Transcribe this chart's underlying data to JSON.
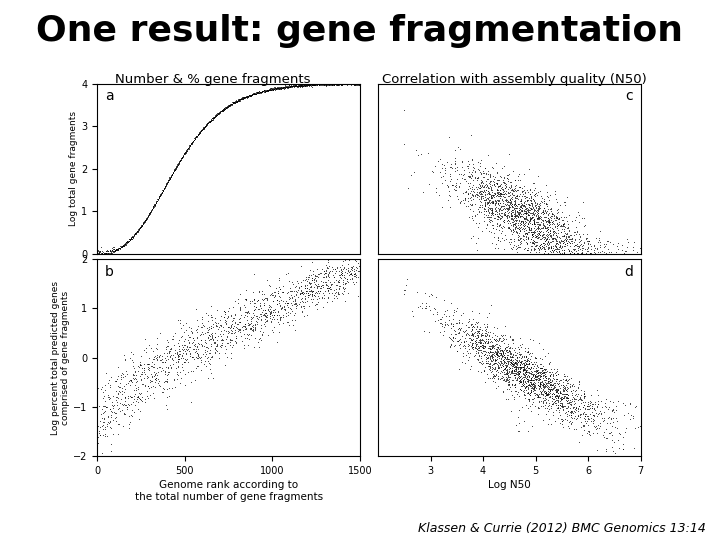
{
  "title": "One result: gene fragmentation",
  "title_fontsize": 26,
  "subtitle_left": "Number & % gene fragments",
  "subtitle_right": "Correlation with assembly quality (N50)",
  "subtitle_fontsize": 9.5,
  "panel_label_fontsize": 10,
  "citation": "Klassen & Currie (2012) BMC Genomics 13:14",
  "citation_fontsize": 9,
  "background_color": "#ffffff",
  "dot_color": "#000000",
  "dot_size": 1.2,
  "panel_a": {
    "ylabel": "Log total gene fragments",
    "ylabel_fontsize": 6.5,
    "xlim": [
      0,
      1500
    ],
    "ylim": [
      0,
      4
    ],
    "yticks": [
      0,
      1,
      2,
      3,
      4
    ],
    "xticks": []
  },
  "panel_b": {
    "xlabel": "Genome rank according to\nthe total number of gene fragments",
    "ylabel": "Log percent total predicted genes\ncomprised of gene fragments",
    "ylabel_fontsize": 6.5,
    "xlabel_fontsize": 7.5,
    "xlim": [
      0,
      1500
    ],
    "ylim": [
      -2,
      2
    ],
    "yticks": [
      -2,
      -1,
      0,
      1,
      2
    ],
    "xticks": [
      0,
      500,
      1000,
      1500
    ]
  },
  "panel_c": {
    "xlim": [
      2,
      7
    ],
    "ylim": [
      0,
      4
    ],
    "yticks": [],
    "xticks": []
  },
  "panel_d": {
    "xlabel": "Log N50",
    "xlabel_fontsize": 7.5,
    "xlim": [
      2,
      7
    ],
    "ylim": [
      -2,
      2
    ],
    "yticks": [],
    "xticks": [
      3,
      4,
      5,
      6,
      7
    ]
  }
}
